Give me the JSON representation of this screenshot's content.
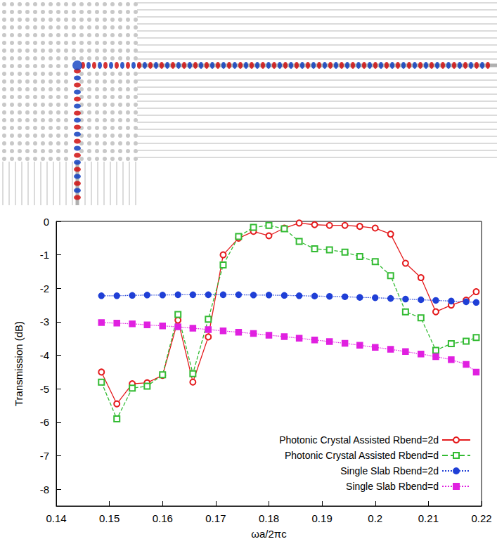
{
  "chart_data": {
    "type": "line",
    "x_label": "ωa/2πc",
    "y_label": "Transmission (dB)",
    "xlim": [
      0.14,
      0.22
    ],
    "xticks": [
      0.14,
      0.15,
      0.16,
      0.17,
      0.18,
      0.19,
      0.2,
      0.21,
      0.22
    ],
    "ylim": [
      -8.5,
      0
    ],
    "yticks": [
      0,
      -1,
      -2,
      -3,
      -4,
      -5,
      -6,
      -7,
      -8
    ],
    "grid": false,
    "legend": "lower right",
    "x": [
      0.1485,
      0.1514,
      0.1543,
      0.1571,
      0.16,
      0.1629,
      0.1657,
      0.1686,
      0.1714,
      0.1743,
      0.1771,
      0.18,
      0.1829,
      0.1857,
      0.1886,
      0.1914,
      0.1943,
      0.1971,
      0.2,
      0.2029,
      0.2057,
      0.2086,
      0.2114,
      0.2143,
      0.2171,
      0.219
    ],
    "series": [
      {
        "name": "Photonic Crystal Assisted Rbend=2d",
        "color": "#e41a1c",
        "marker": "open-circle",
        "line_style": "solid",
        "values": [
          -4.5,
          -5.45,
          -4.85,
          -4.82,
          -4.6,
          -2.95,
          -4.8,
          -3.45,
          -1.0,
          -0.5,
          -0.3,
          -0.43,
          -0.2,
          -0.05,
          -0.1,
          -0.12,
          -0.12,
          -0.15,
          -0.2,
          -0.38,
          -1.25,
          -1.68,
          -2.7,
          -2.5,
          -2.35,
          -2.1
        ]
      },
      {
        "name": "Photonic Crystal Assisted Rbend=d",
        "color": "#33bb33",
        "marker": "open-square",
        "line_style": "dashed",
        "values": [
          -4.8,
          -5.9,
          -4.98,
          -4.92,
          -4.58,
          -2.78,
          -4.55,
          -2.92,
          -1.3,
          -0.45,
          -0.18,
          -0.12,
          -0.22,
          -0.6,
          -0.82,
          -0.85,
          -0.92,
          -1.05,
          -1.2,
          -1.62,
          -2.7,
          -2.88,
          -3.85,
          -3.65,
          -3.58,
          -3.47
        ]
      },
      {
        "name": "Single Slab Rbend=2d",
        "color": "#1f3fd6",
        "marker": "circle",
        "line_style": "dotted",
        "values": [
          -2.22,
          -2.22,
          -2.21,
          -2.2,
          -2.2,
          -2.19,
          -2.19,
          -2.19,
          -2.19,
          -2.19,
          -2.2,
          -2.2,
          -2.21,
          -2.22,
          -2.23,
          -2.24,
          -2.25,
          -2.27,
          -2.28,
          -2.3,
          -2.32,
          -2.34,
          -2.36,
          -2.38,
          -2.4,
          -2.42
        ]
      },
      {
        "name": "Single Slab Rbend=d",
        "color": "#e020e0",
        "marker": "square",
        "line_style": "dotted",
        "values": [
          -3.02,
          -3.04,
          -3.06,
          -3.09,
          -3.12,
          -3.15,
          -3.19,
          -3.23,
          -3.27,
          -3.31,
          -3.35,
          -3.4,
          -3.44,
          -3.49,
          -3.54,
          -3.59,
          -3.64,
          -3.7,
          -3.76,
          -3.82,
          -3.89,
          -3.96,
          -4.04,
          -4.13,
          -4.27,
          -4.5
        ]
      }
    ]
  }
}
